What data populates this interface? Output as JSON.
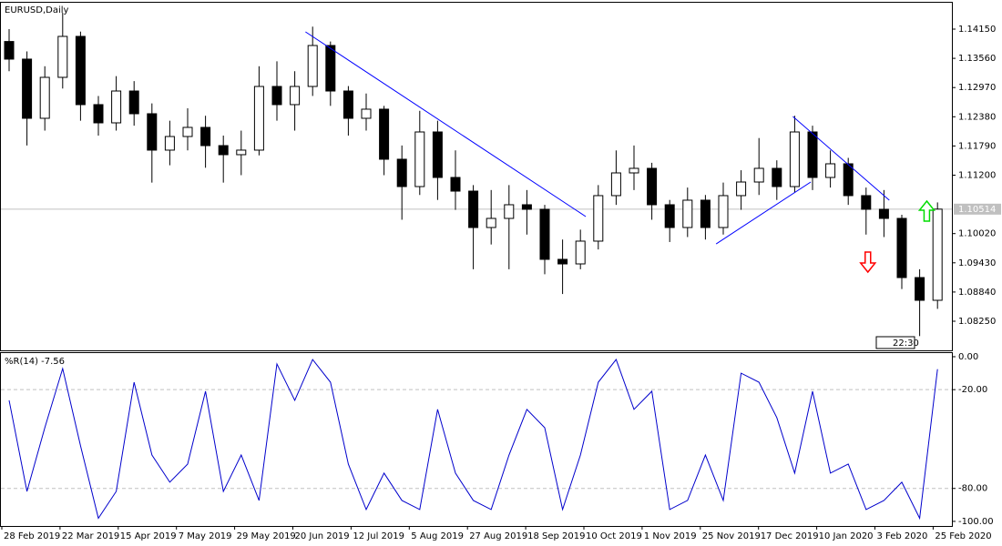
{
  "chart_data": {
    "type": "candlestick",
    "title": "EURUSD,Daily",
    "time_label": "22:30",
    "ylim": [
      1.07662,
      1.14683
    ],
    "yticks": [
      {
        "value": 1.1415,
        "label": "1.14150"
      },
      {
        "value": 1.1356,
        "label": "1.13560"
      },
      {
        "value": 1.1297,
        "label": "1.12970"
      },
      {
        "value": 1.1238,
        "label": "1.12380"
      },
      {
        "value": 1.1179,
        "label": "1.11790"
      },
      {
        "value": 1.112,
        "label": "1.11200"
      },
      {
        "value": 1.1002,
        "label": "1.10020"
      },
      {
        "value": 1.0943,
        "label": "1.09430"
      },
      {
        "value": 1.0884,
        "label": "1.08840"
      },
      {
        "value": 1.0825,
        "label": "1.08250"
      }
    ],
    "current_price": {
      "value": 1.10514,
      "label": "1.10514"
    },
    "candle_colors": {
      "up": "#ffffff",
      "down": "#000000",
      "outline": "#000000"
    },
    "candles": [
      [
        1.139,
        1.1415,
        1.133,
        1.13544
      ],
      [
        1.13544,
        1.137,
        1.118,
        1.12349
      ],
      [
        1.12349,
        1.134,
        1.121,
        1.13176
      ],
      [
        1.13176,
        1.1448,
        1.1295,
        1.14003
      ],
      [
        1.14003,
        1.141,
        1.123,
        1.12625
      ],
      [
        1.12625,
        1.128,
        1.12,
        1.12257
      ],
      [
        1.12257,
        1.132,
        1.121,
        1.129
      ],
      [
        1.129,
        1.131,
        1.122,
        1.12441
      ],
      [
        1.12441,
        1.1265,
        1.1105,
        1.11706
      ],
      [
        1.11706,
        1.123,
        1.114,
        1.11981
      ],
      [
        1.11981,
        1.1255,
        1.117,
        1.12165
      ],
      [
        1.12165,
        1.124,
        1.1135,
        1.11797
      ],
      [
        1.11797,
        1.12,
        1.1105,
        1.11614
      ],
      [
        1.11614,
        1.121,
        1.112,
        1.11706
      ],
      [
        1.11706,
        1.134,
        1.116,
        1.12992
      ],
      [
        1.12992,
        1.135,
        1.123,
        1.12625
      ],
      [
        1.12625,
        1.133,
        1.121,
        1.12992
      ],
      [
        1.12992,
        1.142,
        1.128,
        1.13819
      ],
      [
        1.13819,
        1.139,
        1.126,
        1.129
      ],
      [
        1.129,
        1.13,
        1.12,
        1.12349
      ],
      [
        1.12349,
        1.1285,
        1.121,
        1.12533
      ],
      [
        1.12533,
        1.126,
        1.112,
        1.11522
      ],
      [
        1.11522,
        1.118,
        1.103,
        1.1097
      ],
      [
        1.1097,
        1.125,
        1.108,
        1.12073
      ],
      [
        1.12073,
        1.123,
        1.107,
        1.11154
      ],
      [
        1.11154,
        1.117,
        1.105,
        1.10878
      ],
      [
        1.10878,
        1.11,
        1.093,
        1.10143
      ],
      [
        1.10143,
        1.109,
        1.098,
        1.10327
      ],
      [
        1.10327,
        1.11,
        1.093,
        1.10603
      ],
      [
        1.10603,
        1.109,
        1.1,
        1.10511
      ],
      [
        1.10511,
        1.106,
        1.092,
        1.095
      ],
      [
        1.095,
        1.099,
        1.088,
        1.09408
      ],
      [
        1.09408,
        1.101,
        1.093,
        1.09868
      ],
      [
        1.09868,
        1.11,
        1.097,
        1.10787
      ],
      [
        1.10787,
        1.117,
        1.106,
        1.11246
      ],
      [
        1.11246,
        1.118,
        1.109,
        1.11338
      ],
      [
        1.11338,
        1.1145,
        1.103,
        1.10603
      ],
      [
        1.10603,
        1.107,
        1.0985,
        1.10143
      ],
      [
        1.10143,
        1.1095,
        1.0995,
        1.10695
      ],
      [
        1.10695,
        1.108,
        1.099,
        1.10143
      ],
      [
        1.10143,
        1.1105,
        1.1,
        1.10787
      ],
      [
        1.10787,
        1.113,
        1.105,
        1.11062
      ],
      [
        1.11062,
        1.1195,
        1.108,
        1.11338
      ],
      [
        1.11338,
        1.115,
        1.107,
        1.1097
      ],
      [
        1.1097,
        1.124,
        1.1085,
        1.12073
      ],
      [
        1.12073,
        1.122,
        1.109,
        1.11154
      ],
      [
        1.11154,
        1.117,
        1.1095,
        1.1143
      ],
      [
        1.1143,
        1.1155,
        1.106,
        1.10787
      ],
      [
        1.10787,
        1.1095,
        1.1,
        1.10511
      ],
      [
        1.10511,
        1.109,
        1.0995,
        1.10327
      ],
      [
        1.10327,
        1.104,
        1.089,
        1.09132
      ],
      [
        1.09132,
        1.093,
        1.0795,
        1.08673
      ],
      [
        1.08673,
        1.1065,
        1.085,
        1.10514
      ]
    ],
    "trendline_color": "#0000ff",
    "trendlines": [
      {
        "x": [
          16.6,
          32.3
        ],
        "y": [
          1.14095,
          1.10364
        ]
      },
      {
        "x": [
          39.6,
          44.9
        ],
        "y": [
          1.09812,
          1.11062
        ]
      },
      {
        "x": [
          43.9,
          49.3
        ],
        "y": [
          1.12386,
          1.10695
        ]
      }
    ],
    "signals": [
      {
        "direction": "down",
        "color": "#ff0000",
        "x": 48.1,
        "y": 1.09445
      },
      {
        "direction": "up",
        "color": "#00dd00",
        "x": 51.4,
        "y": 1.10474
      }
    ],
    "xtick_labels": [
      "28 Feb 2019",
      "22 Mar 2019",
      "15 Apr 2019",
      "7 May 2019",
      "29 May 2019",
      "20 Jun 2019",
      "12 Jul 2019",
      "5 Aug 2019",
      "27 Aug 2019",
      "18 Sep 2019",
      "10 Oct 2019",
      "1 Nov 2019",
      "25 Nov 2019",
      "17 Dec 2019",
      "10 Jan 2020",
      "3 Feb 2020",
      "25 Feb 2020"
    ],
    "indicator": {
      "type": "line",
      "title": "%R(14) -7.56",
      "color": "#0000cc",
      "ylim": [
        -102.8,
        2.2
      ],
      "yticks": [
        {
          "value": 0,
          "label": "0.00"
        },
        {
          "value": -20,
          "label": "-20.00"
        },
        {
          "value": -80,
          "label": "-80.00"
        },
        {
          "value": -100,
          "label": "-100.00"
        }
      ],
      "levels": [
        -20,
        -80
      ],
      "values": [
        -26.5,
        -81.8,
        -43.1,
        -7.2,
        -54.1,
        -98.1,
        -81.8,
        -15.5,
        -59.7,
        -76.2,
        -65.2,
        -21.0,
        -81.8,
        -59.7,
        -87.3,
        -4.4,
        -26.5,
        -1.7,
        -15.5,
        -65.2,
        -92.8,
        -70.7,
        -87.3,
        -92.8,
        -32.0,
        -70.7,
        -87.3,
        -92.8,
        -59.7,
        -32.0,
        -43.1,
        -92.8,
        -59.7,
        -15.5,
        -1.7,
        -32.0,
        -21.0,
        -92.8,
        -87.3,
        -59.7,
        -87.3,
        -10.0,
        -15.5,
        -37.0,
        -70.7,
        -21.0,
        -70.7,
        -65.2,
        -92.8,
        -87.3,
        -76.2,
        -98.1,
        -7.56
      ]
    }
  }
}
